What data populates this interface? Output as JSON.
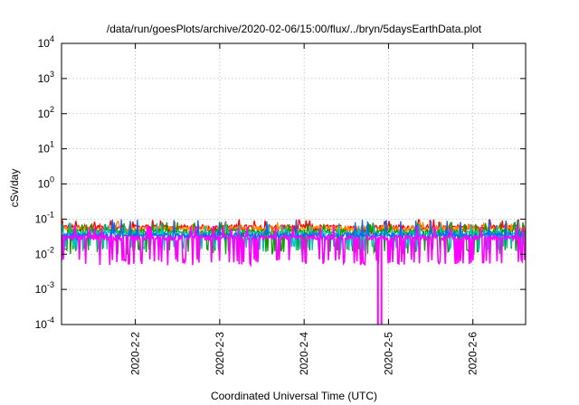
{
  "chart_data": {
    "type": "line",
    "title": "/data/run/goesPlots/archive/2020-02-06/15:00/flux/../bryn/5daysEarthData.plot",
    "xlabel": "Coordinated Universal Time (UTC)",
    "ylabel": "cSv/day",
    "yscale": "log",
    "ylim": [
      0.0001,
      10000
    ],
    "xlim": [
      "2020-02-01T03:00",
      "2020-02-06T15:00"
    ],
    "x_ticks": [
      "2020-2-2",
      "2020-2-3",
      "2020-2-4",
      "2020-2-5",
      "2020-2-6"
    ],
    "y_ticks": [
      {
        "base": "10",
        "exp": "-4",
        "value": 0.0001
      },
      {
        "base": "10",
        "exp": "-3",
        "value": 0.001
      },
      {
        "base": "10",
        "exp": "-2",
        "value": 0.01
      },
      {
        "base": "10",
        "exp": "-1",
        "value": 0.1
      },
      {
        "base": "10",
        "exp": "0",
        "value": 1
      },
      {
        "base": "10",
        "exp": "1",
        "value": 10
      },
      {
        "base": "10",
        "exp": "2",
        "value": 100
      },
      {
        "base": "10",
        "exp": "3",
        "value": 1000
      },
      {
        "base": "10",
        "exp": "4",
        "value": 10000
      }
    ],
    "grid": true,
    "series": [
      {
        "color": "#ff0000",
        "base": 0.06,
        "low": 0.045,
        "high": 0.09
      },
      {
        "color": "#ff8c00",
        "base": 0.055,
        "low": 0.04,
        "high": 0.08
      },
      {
        "color": "#00a000",
        "base": 0.045,
        "low": 0.012,
        "high": 0.075
      },
      {
        "color": "#00c0c0",
        "base": 0.04,
        "low": 0.015,
        "high": 0.07
      },
      {
        "color": "#1060ff",
        "base": 0.035,
        "low": 0.03,
        "high": 0.09
      },
      {
        "color": "#ff00ff",
        "base": 0.03,
        "low": 0.006,
        "high": 0.06
      }
    ],
    "dropouts": [
      {
        "time": "2020-02-04T21:00",
        "value": 0.0001
      },
      {
        "time": "2020-02-04T22:00",
        "value": 0.0001
      }
    ]
  }
}
